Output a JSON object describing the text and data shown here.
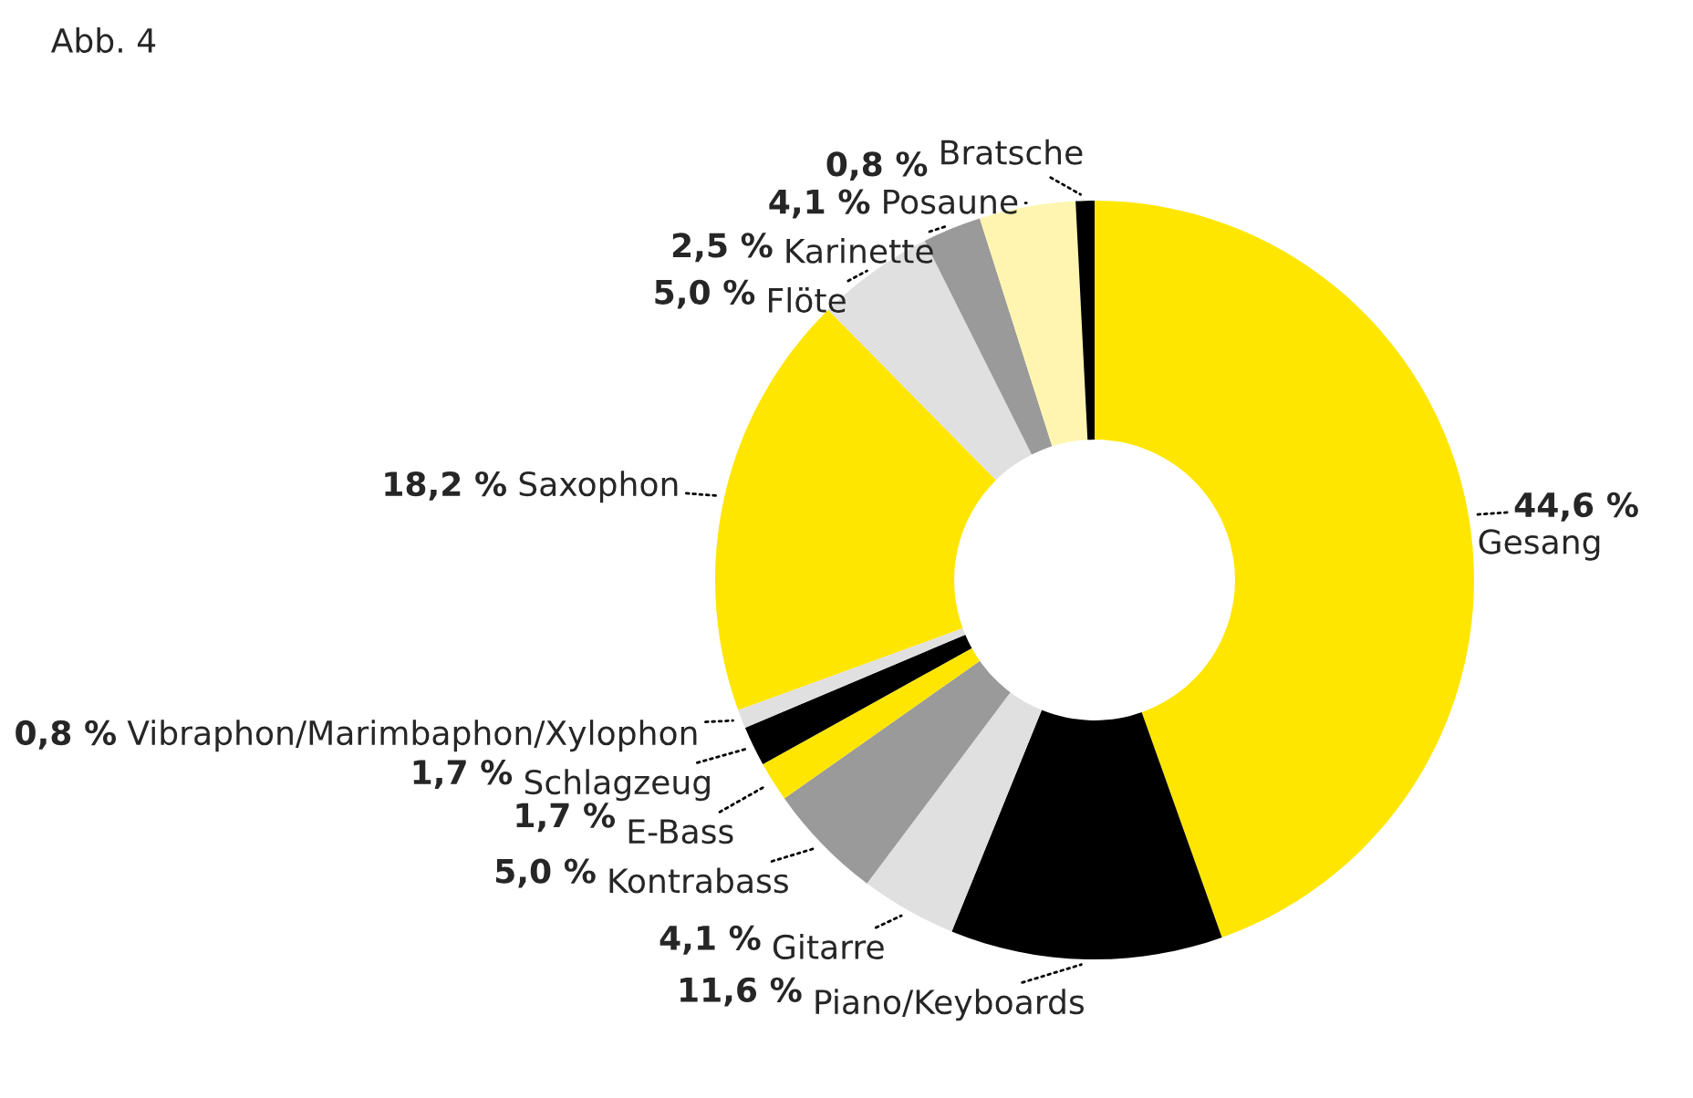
{
  "chart_data": {
    "type": "donut",
    "title": "Abb. 4",
    "categories": [
      "Gesang",
      "Piano/Keyboards",
      "Gitarre",
      "Kontrabass",
      "E-Bass",
      "Schlagzeug",
      "Vibraphon/Marimbaphon/Xylophon",
      "Saxophon",
      "Flöte",
      "Karinette",
      "Posaune",
      "Bratsche"
    ],
    "values": [
      44.6,
      11.6,
      4.1,
      5.0,
      1.7,
      1.7,
      0.8,
      18.2,
      5.0,
      2.5,
      4.1,
      0.8
    ],
    "value_labels": [
      "44,6 %",
      "11,6 %",
      "4,1 %",
      "5,0 %",
      "1,7 %",
      "1,7 %",
      "0,8 %",
      "18,2 %",
      "5,0 %",
      "2,5 %",
      "4,1 %",
      "0,8 %"
    ],
    "colors": [
      "#ffe600",
      "#000000",
      "#e0e0e0",
      "#9a9a9a",
      "#ffe600",
      "#000000",
      "#e0e0e0",
      "#ffe600",
      "#e0e0e0",
      "#9a9a9a",
      "#fff5b0",
      "#000000"
    ]
  }
}
